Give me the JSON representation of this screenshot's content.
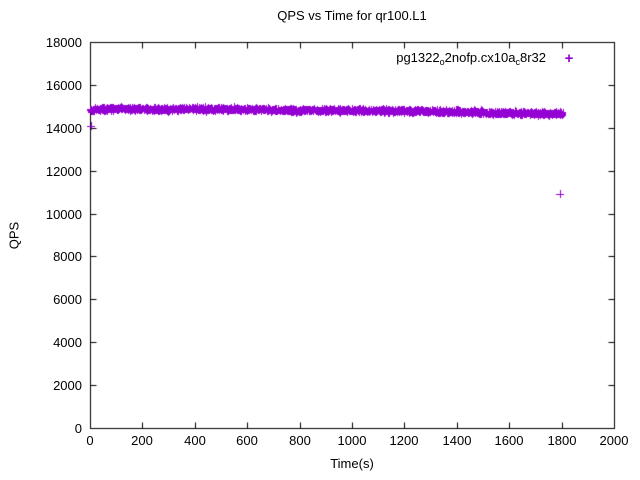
{
  "title": "QPS vs Time for qr100.L1",
  "xlabel": "Time(s)",
  "ylabel": "QPS",
  "legend": {
    "name_raw": "pg1322_o2nofp.cx10a_c8r32",
    "parts": [
      {
        "text": "pg1322",
        "sub": false
      },
      {
        "text": "o",
        "sub": true
      },
      {
        "text": "2nofp.cx10a",
        "sub": false
      },
      {
        "text": "c",
        "sub": true
      },
      {
        "text": "8r32",
        "sub": false
      }
    ],
    "marker": "+"
  },
  "colors": {
    "series": "#9400d3",
    "axis": "#000000",
    "background": "#ffffff"
  },
  "chart_data": {
    "type": "scatter",
    "title": "QPS vs Time for qr100.L1",
    "xlabel": "Time(s)",
    "ylabel": "QPS",
    "xlim": [
      0,
      2000
    ],
    "ylim": [
      0,
      18000
    ],
    "xticks": [
      0,
      200,
      400,
      600,
      800,
      1000,
      1200,
      1400,
      1600,
      1800,
      2000
    ],
    "yticks": [
      0,
      2000,
      4000,
      6000,
      8000,
      10000,
      12000,
      14000,
      16000,
      18000
    ],
    "grid": false,
    "legend_position": "top-right",
    "series": [
      {
        "name": "pg1322_o2nofp.cx10a_c8r32",
        "marker": "+",
        "color": "#9400d3",
        "band": {
          "x_start": 0,
          "x_end": 1806,
          "y_noise": 170,
          "n_points": 2600,
          "seed": 42
        },
        "sampled_points": [
          [
            0,
            14830
          ],
          [
            50,
            14860
          ],
          [
            100,
            14880
          ],
          [
            150,
            14860
          ],
          [
            200,
            14850
          ],
          [
            250,
            14840
          ],
          [
            300,
            14850
          ],
          [
            350,
            14870
          ],
          [
            400,
            14880
          ],
          [
            450,
            14860
          ],
          [
            500,
            14850
          ],
          [
            550,
            14860
          ],
          [
            600,
            14850
          ],
          [
            650,
            14830
          ],
          [
            700,
            14810
          ],
          [
            750,
            14800
          ],
          [
            800,
            14790
          ],
          [
            850,
            14800
          ],
          [
            900,
            14810
          ],
          [
            950,
            14800
          ],
          [
            1000,
            14790
          ],
          [
            1050,
            14790
          ],
          [
            1100,
            14780
          ],
          [
            1150,
            14780
          ],
          [
            1200,
            14770
          ],
          [
            1250,
            14770
          ],
          [
            1300,
            14760
          ],
          [
            1350,
            14750
          ],
          [
            1400,
            14740
          ],
          [
            1450,
            14720
          ],
          [
            1500,
            14700
          ],
          [
            1550,
            14690
          ],
          [
            1600,
            14680
          ],
          [
            1650,
            14670
          ],
          [
            1700,
            14660
          ],
          [
            1750,
            14650
          ],
          [
            1806,
            14650
          ]
        ],
        "outliers": [
          [
            3,
            14100
          ],
          [
            1795,
            10900
          ]
        ]
      }
    ]
  }
}
